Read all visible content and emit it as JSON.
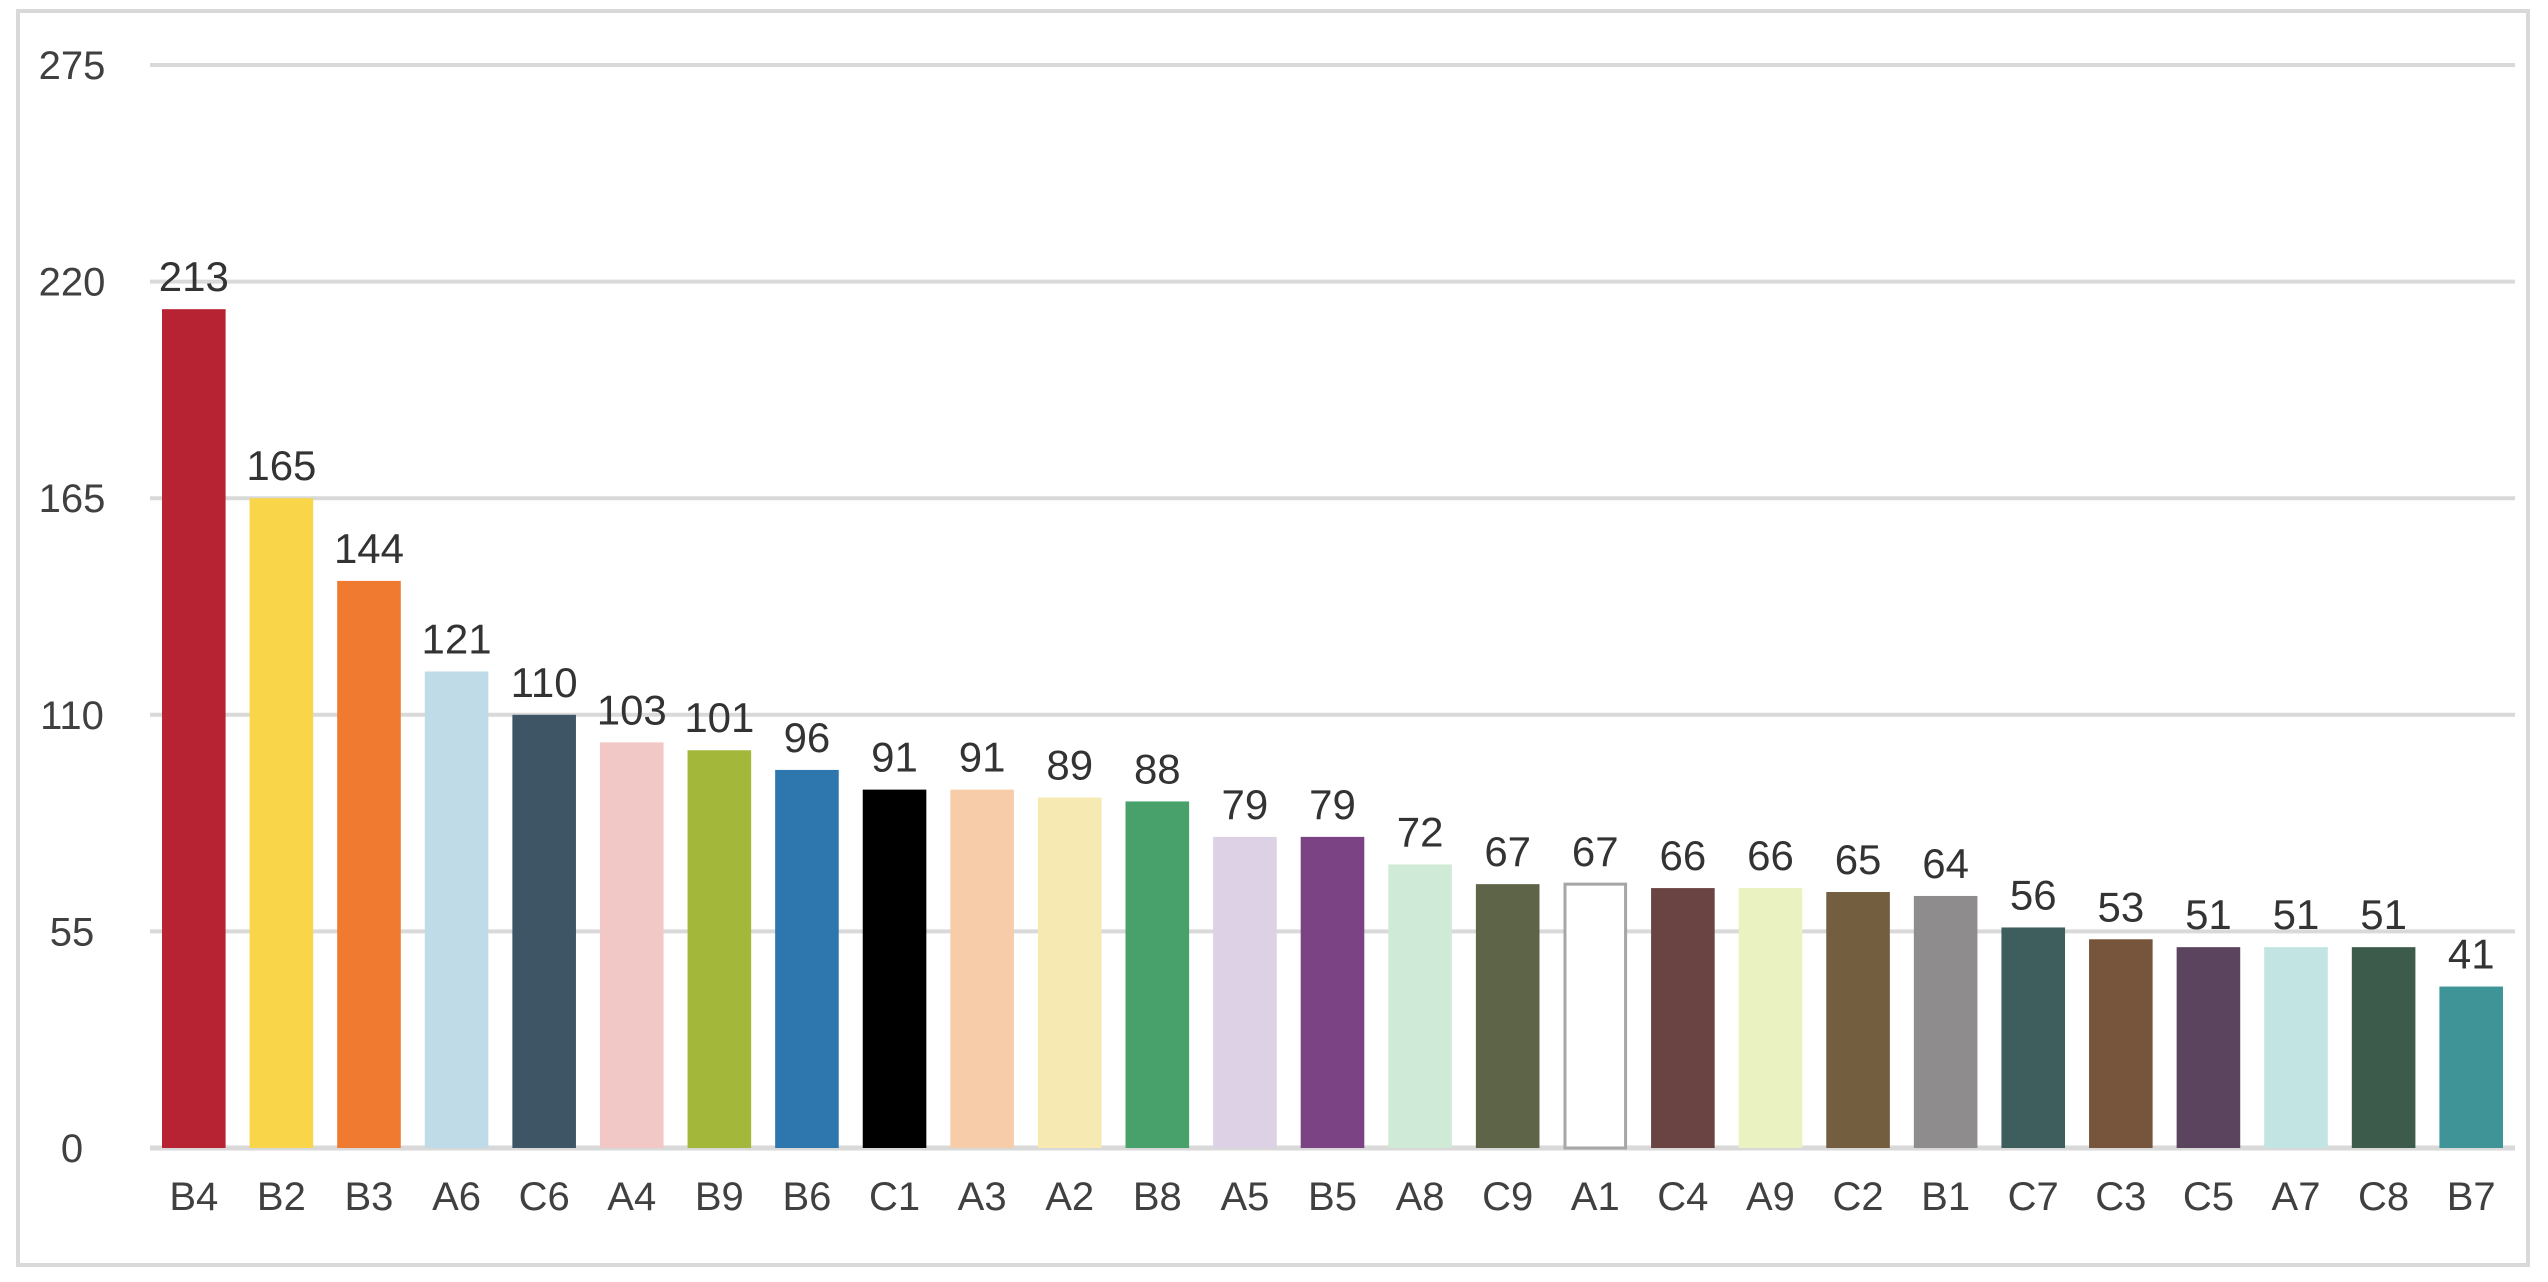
{
  "chart_data": {
    "type": "bar",
    "title": "",
    "xlabel": "",
    "ylabel": "",
    "ylim": [
      0,
      275
    ],
    "yticks": [
      0,
      55,
      110,
      165,
      220,
      275
    ],
    "ytick_labels": [
      "0",
      "55",
      "110",
      "165",
      "220",
      "275"
    ],
    "grid": true,
    "legend": "none",
    "categories": [
      "B4",
      "B2",
      "B3",
      "A6",
      "C6",
      "A4",
      "B9",
      "B6",
      "C1",
      "A3",
      "A2",
      "B8",
      "A5",
      "B5",
      "A8",
      "C9",
      "A1",
      "C4",
      "A9",
      "C2",
      "B1",
      "C7",
      "C3",
      "C5",
      "A7",
      "C8",
      "B7"
    ],
    "values": [
      213,
      165,
      144,
      121,
      110,
      103,
      101,
      96,
      91,
      91,
      89,
      88,
      79,
      79,
      72,
      67,
      67,
      66,
      66,
      65,
      64,
      56,
      53,
      51,
      51,
      51,
      41
    ],
    "value_labels": [
      "213",
      "165",
      "144",
      "121",
      "110",
      "103",
      "101",
      "96",
      "91",
      "91",
      "89",
      "88",
      "79",
      "79",
      "72",
      "67",
      "67",
      "66",
      "66",
      "65",
      "64",
      "56",
      "53",
      "51",
      "51",
      "51",
      "41"
    ],
    "colors": [
      "#b82334",
      "#f9d54a",
      "#ef7a30",
      "#c0dbe8",
      "#3e5566",
      "#f2c8c6",
      "#a3b83b",
      "#2e77ae",
      "#000000",
      "#f7cda9",
      "#f6e9b1",
      "#48a06b",
      "#ddd1e5",
      "#7b4383",
      "#cfead6",
      "#5d6447",
      "#ffffff",
      "#6a4443",
      "#ebf2c2",
      "#735f3f",
      "#8e8c8c",
      "#3e5e5d",
      "#77553c",
      "#5b455e",
      "#c2e5e3",
      "#3d5b4b",
      "#3e9497"
    ],
    "outlined_bars": [
      "A1"
    ],
    "outline_color": "#a6a6a6",
    "gridline_color": "#d9d9d9",
    "text_color": "#404040",
    "value_label_color": "#333333"
  }
}
